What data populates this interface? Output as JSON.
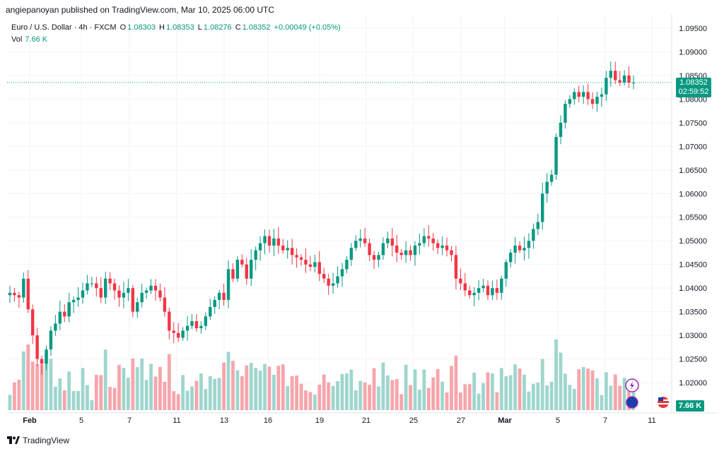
{
  "header": {
    "published": "angiepanoyan published on TradingView.com, Mar 10, 2025 06:00 UTC"
  },
  "legend": {
    "symbol": "Euro / U.S. Dollar · 4h · FXCM",
    "o_label": "O",
    "o_value": "1.08303",
    "h_label": "H",
    "h_value": "1.08353",
    "l_label": "L",
    "l_value": "1.08276",
    "c_label": "C",
    "c_value": "1.08352",
    "change": "+0.00049 (+0.05%)",
    "vol_label": "Vol",
    "vol_value": "7.66 K"
  },
  "price_tag": {
    "price": "1.08352",
    "countdown": "02:59:52"
  },
  "vol_tag": "7.66 K",
  "footer": {
    "brand": "TradingView"
  },
  "colors": {
    "up": "#089981",
    "down": "#F23645",
    "vol_up": "#9FD6CE",
    "vol_down": "#F6A5AB"
  },
  "chart_data": {
    "type": "candlestick",
    "interval": "4h",
    "y_ticks": [
      "1.09500",
      "1.09000",
      "1.08500",
      "1.08000",
      "1.07500",
      "1.07000",
      "1.06500",
      "1.06000",
      "1.05500",
      "1.05000",
      "1.04500",
      "1.04000",
      "1.03500",
      "1.03000",
      "1.02500",
      "1.02000"
    ],
    "ylim": [
      1.0175,
      1.0965
    ],
    "x_ticks": [
      "Feb",
      "5",
      "7",
      "11",
      "13",
      "16",
      "19",
      "21",
      "25",
      "27",
      "Mar",
      "5",
      "7",
      "11"
    ],
    "last_price": 1.08352,
    "volume_last": "7.66 K",
    "closes": [
      1.039,
      1.0385,
      1.038,
      1.042,
      1.0355,
      1.03,
      1.025,
      1.024,
      1.027,
      1.031,
      1.0325,
      1.035,
      1.034,
      1.037,
      1.0375,
      1.038,
      1.0395,
      1.041,
      1.041,
      1.04,
      1.038,
      1.042,
      1.041,
      1.0395,
      1.038,
      1.039,
      1.04,
      1.035,
      1.037,
      1.039,
      1.0395,
      1.0405,
      1.0395,
      1.038,
      1.035,
      1.031,
      1.0305,
      1.0295,
      1.031,
      1.032,
      1.033,
      1.0315,
      1.032,
      1.034,
      1.036,
      1.0375,
      1.039,
      1.0375,
      1.044,
      1.042,
      1.046,
      1.045,
      1.042,
      1.046,
      1.048,
      1.0495,
      1.051,
      1.049,
      1.0505,
      1.049,
      1.048,
      1.0485,
      1.047,
      1.0465,
      1.046,
      1.045,
      1.0445,
      1.0455,
      1.043,
      1.042,
      1.0405,
      1.041,
      1.0425,
      1.044,
      1.046,
      1.0485,
      1.05,
      1.0505,
      1.0495,
      1.047,
      1.046,
      1.047,
      1.0495,
      1.0505,
      1.049,
      1.0475,
      1.047,
      1.048,
      1.047,
      1.049,
      1.0495,
      1.051,
      1.0505,
      1.0495,
      1.0485,
      1.049,
      1.048,
      1.047,
      1.042,
      1.041,
      1.0395,
      1.0385,
      1.039,
      1.04,
      1.0405,
      1.0385,
      1.04,
      1.039,
      1.042,
      1.0455,
      1.0475,
      1.049,
      1.048,
      1.0485,
      1.05,
      1.0525,
      1.054,
      1.06,
      1.0625,
      1.064,
      1.072,
      1.075,
      1.079,
      1.08,
      1.0815,
      1.0805,
      1.0815,
      1.08,
      1.079,
      1.0805,
      1.081,
      1.0845,
      1.086,
      1.084,
      1.0835,
      1.085,
      1.0835,
      1.0835
    ]
  }
}
